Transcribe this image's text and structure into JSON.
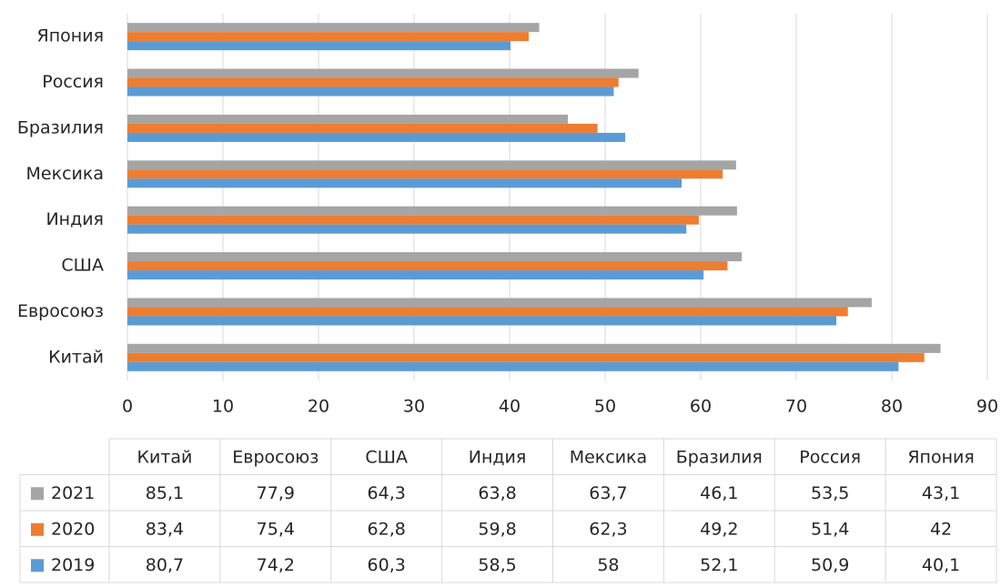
{
  "chart_data": {
    "type": "bar",
    "orientation": "horizontal",
    "categories": [
      "Китай",
      "Евросоюз",
      "США",
      "Индия",
      "Мексика",
      "Бразилия",
      "Россия",
      "Япония"
    ],
    "series": [
      {
        "name": "2021",
        "color": "#a5a5a5",
        "values": [
          85.1,
          77.9,
          64.3,
          63.8,
          63.7,
          46.1,
          53.5,
          43.1
        ],
        "value_labels": [
          "85,1",
          "77,9",
          "64,3",
          "63,8",
          "63,7",
          "46,1",
          "53,5",
          "43,1"
        ]
      },
      {
        "name": "2020",
        "color": "#ed7d31",
        "values": [
          83.4,
          75.4,
          62.8,
          59.8,
          62.3,
          49.2,
          51.4,
          42
        ],
        "value_labels": [
          "83,4",
          "75,4",
          "62,8",
          "59,8",
          "62,3",
          "49,2",
          "51,4",
          "42"
        ]
      },
      {
        "name": "2019",
        "color": "#5b9bd5",
        "values": [
          80.7,
          74.2,
          60.3,
          58.5,
          58,
          52.1,
          50.9,
          40.1
        ],
        "value_labels": [
          "80,7",
          "74,2",
          "60,3",
          "58,5",
          "58",
          "52,1",
          "50,9",
          "40,1"
        ]
      }
    ],
    "xlim": [
      0,
      90
    ],
    "xticks": [
      0,
      10,
      20,
      30,
      40,
      50,
      60,
      70,
      80,
      90
    ],
    "grid": true,
    "data_table": true
  }
}
